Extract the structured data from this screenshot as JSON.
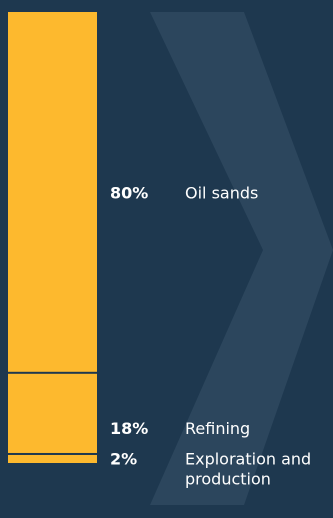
{
  "chart_data": {
    "type": "bar",
    "stacked": true,
    "orientation": "vertical",
    "title": "",
    "xlabel": "",
    "ylabel": "",
    "unit": "%",
    "segments": [
      {
        "label_lines": [
          "Oil sands"
        ],
        "value": 80,
        "value_label": "80%"
      },
      {
        "label_lines": [
          "Refining"
        ],
        "value": 18,
        "value_label": "18%"
      },
      {
        "label_lines": [
          "Exploration and",
          "production"
        ],
        "value": 2,
        "value_label": "2%"
      }
    ],
    "legend": "none",
    "grid": false
  },
  "colors": {
    "background": "#1e384f",
    "bar": "#fdb92e",
    "divider": "#1e384f",
    "chevron": "#2c465d",
    "text": "#ffffff"
  }
}
